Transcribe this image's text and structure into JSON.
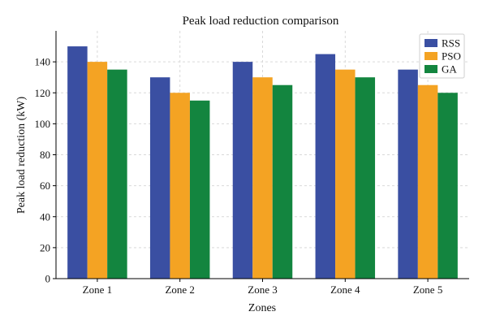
{
  "chart_data": {
    "type": "bar",
    "title": "Peak load reduction comparison",
    "xlabel": "Zones",
    "ylabel": "Peak load reduction (kW)",
    "categories": [
      "Zone 1",
      "Zone 2",
      "Zone 3",
      "Zone 4",
      "Zone 5"
    ],
    "series": [
      {
        "name": "RSS",
        "color": "#3a4fa2",
        "values": [
          150,
          130,
          140,
          145,
          135
        ]
      },
      {
        "name": "PSO",
        "color": "#f4a323",
        "values": [
          140,
          120,
          130,
          135,
          125
        ]
      },
      {
        "name": "GA",
        "color": "#13853f",
        "values": [
          135,
          115,
          125,
          130,
          120
        ]
      }
    ],
    "ylim": [
      0,
      160
    ],
    "yticks": [
      0,
      20,
      40,
      60,
      80,
      100,
      120,
      140
    ],
    "grid": true,
    "legend_position": "top-right"
  }
}
